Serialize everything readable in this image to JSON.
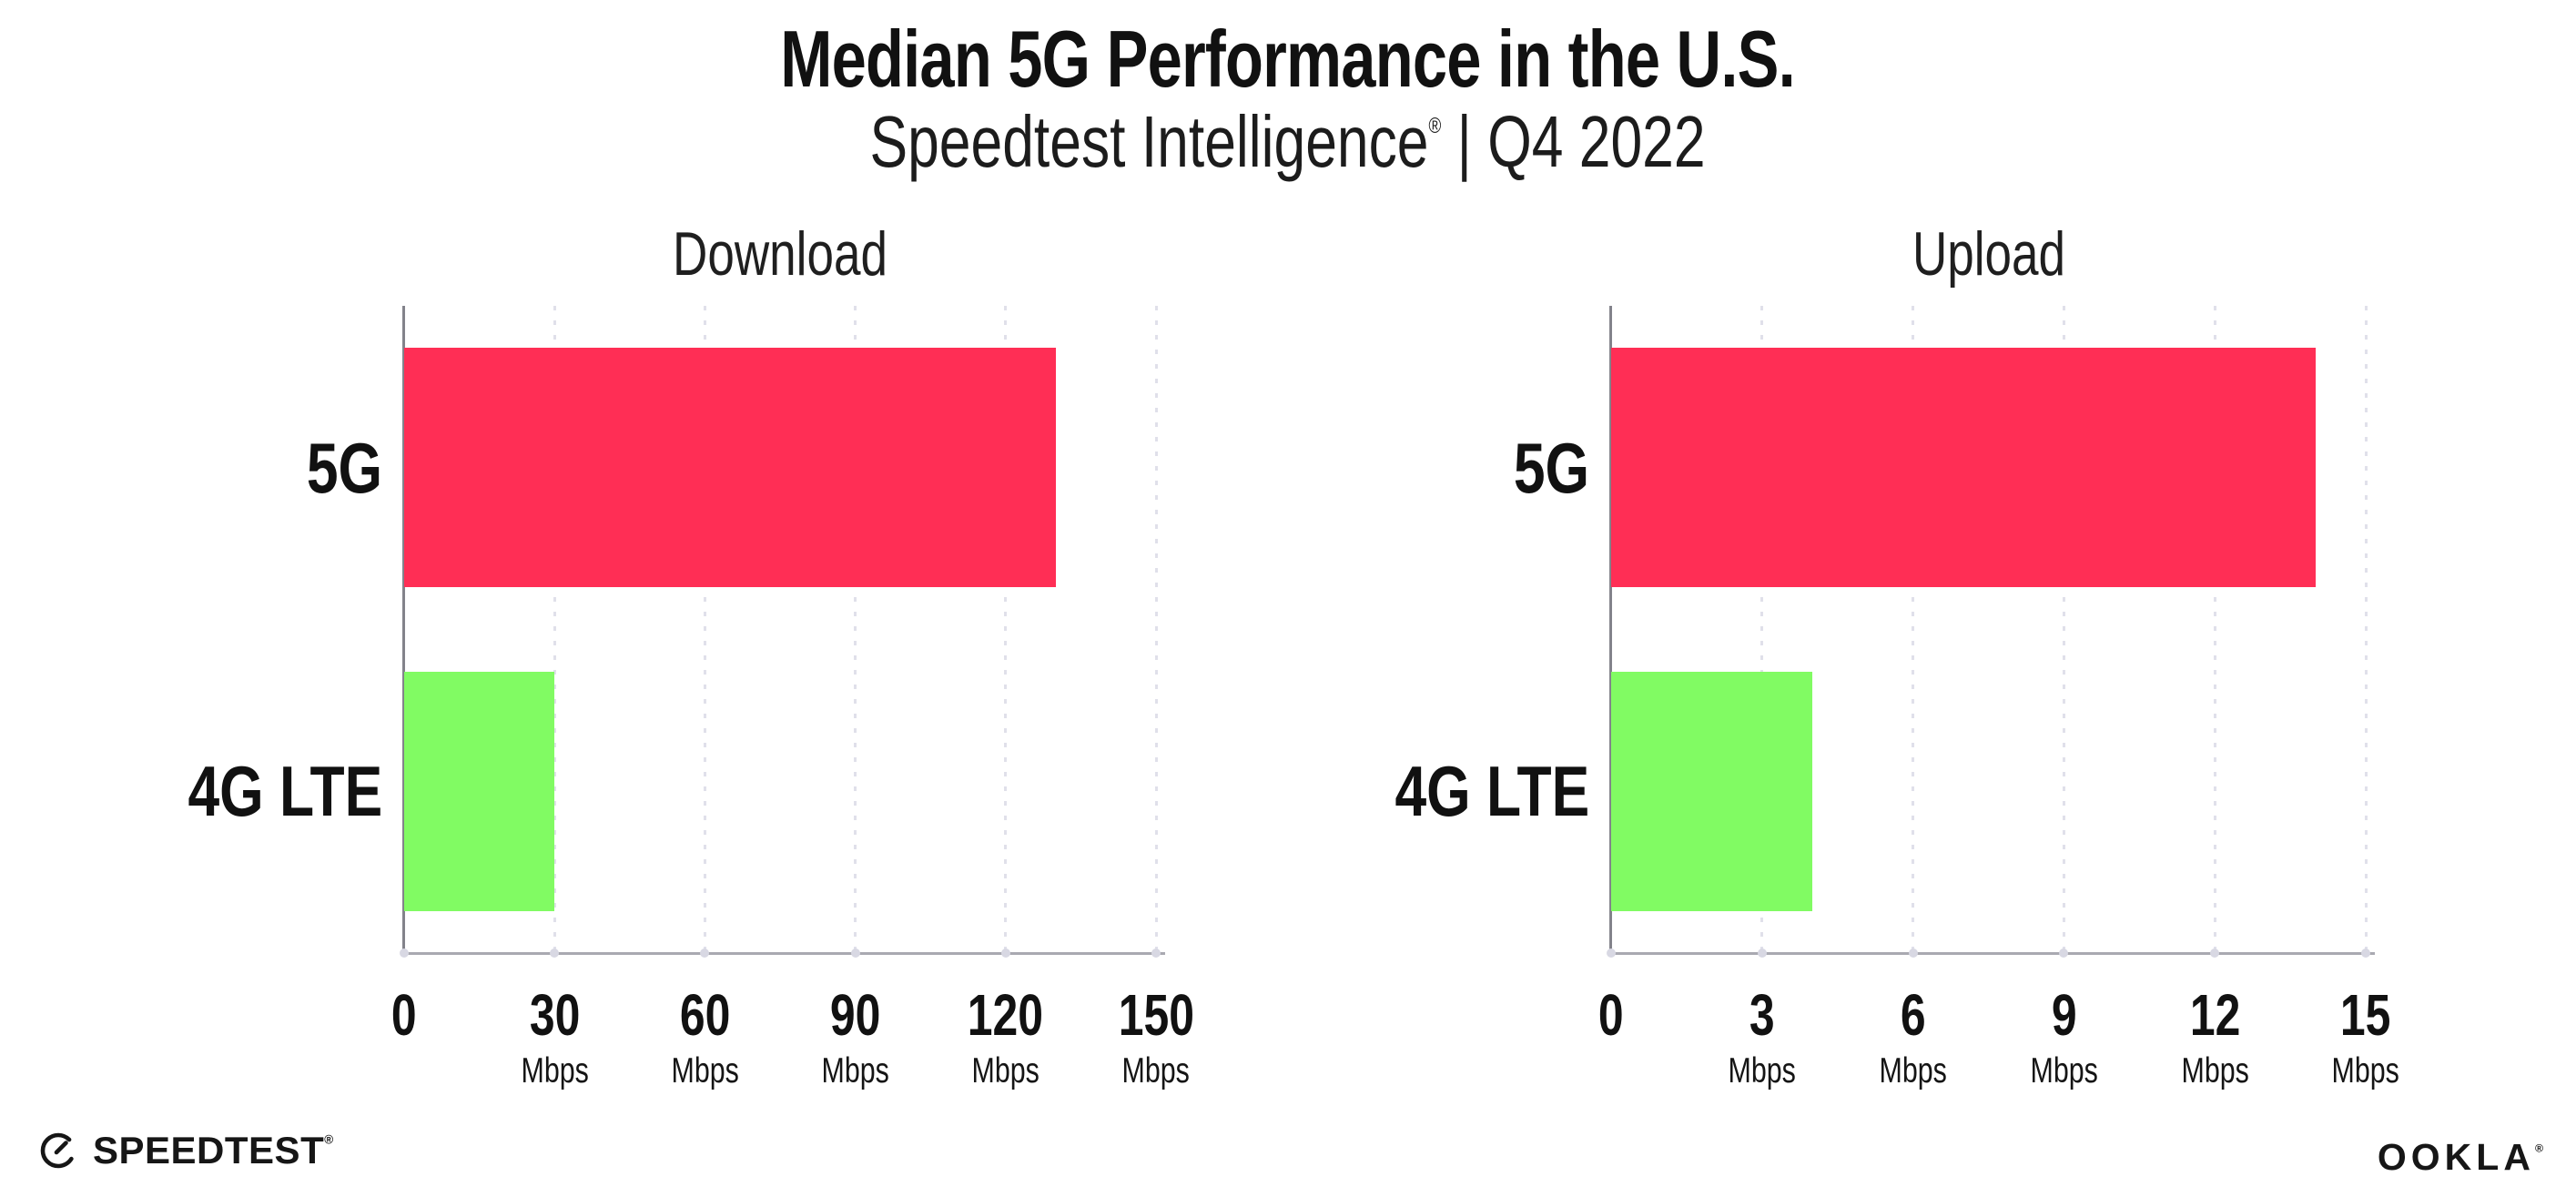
{
  "header": {
    "title": "Median 5G Performance in the U.S.",
    "subtitle_brand": "Speedtest Intelligence",
    "subtitle_reg": "®",
    "subtitle_rest": " | Q4 2022"
  },
  "footer": {
    "speedtest_label": "SPEEDTEST",
    "speedtest_reg": "®",
    "ookla_label": "OOKLA",
    "ookla_reg": "®"
  },
  "colors": {
    "bar_5g": "#FF2E55",
    "bar_4g_lte": "#81FB63",
    "gridline": "#E0E0EA",
    "x_axis": "#A9A9B1",
    "y_axis": "#83838B",
    "axis_dot": "#D8D8E3",
    "text": "#111111",
    "background": "#FFFFFF"
  },
  "chart_data": [
    {
      "type": "bar",
      "orientation": "horizontal",
      "title": "Download",
      "categories": [
        "5G",
        "4G LTE"
      ],
      "values": [
        130,
        30
      ],
      "unit": "Mbps",
      "xlim": [
        0,
        150
      ],
      "ticks": [
        0,
        30,
        60,
        90,
        120,
        150
      ],
      "bar_colors": [
        "#FF2E55",
        "#81FB63"
      ],
      "grid": "dotted-vertical",
      "legend": "none"
    },
    {
      "type": "bar",
      "orientation": "horizontal",
      "title": "Upload",
      "categories": [
        "5G",
        "4G LTE"
      ],
      "values": [
        14,
        4
      ],
      "unit": "Mbps",
      "xlim": [
        0,
        15
      ],
      "ticks": [
        0,
        3,
        6,
        9,
        12,
        15
      ],
      "bar_colors": [
        "#FF2E55",
        "#81FB63"
      ],
      "grid": "dotted-vertical",
      "legend": "none"
    }
  ]
}
